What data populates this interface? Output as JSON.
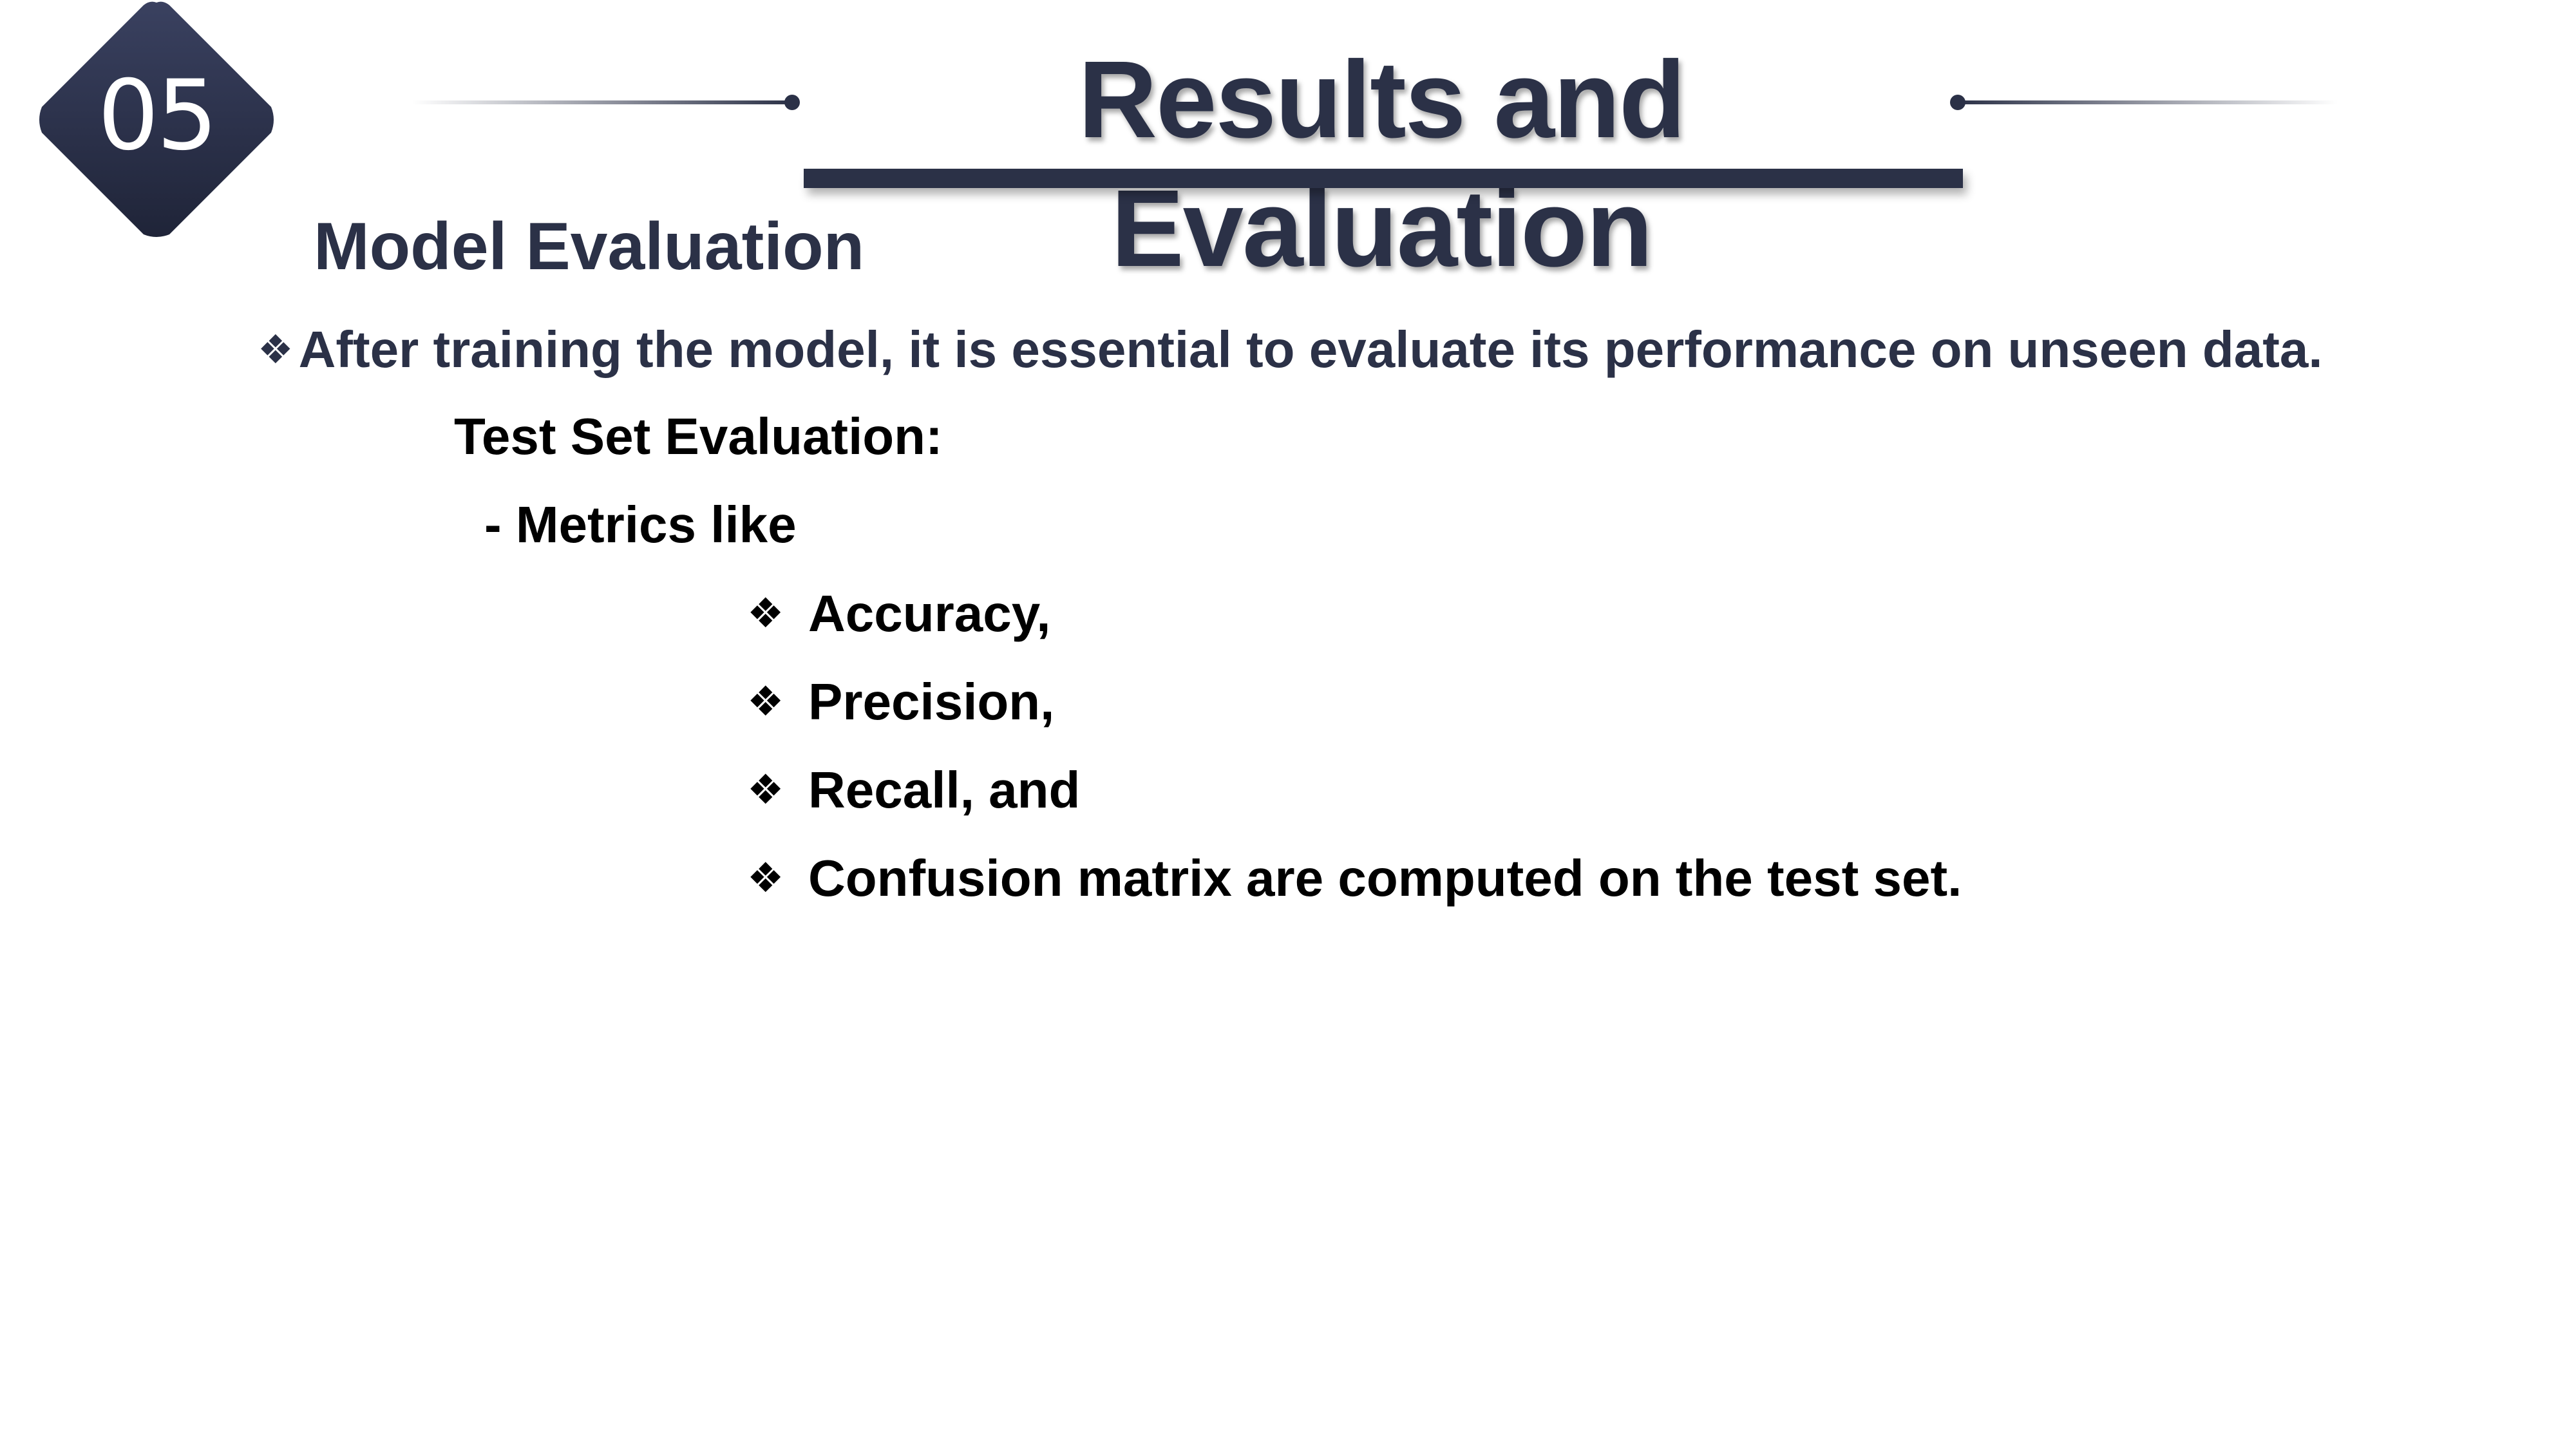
{
  "section": {
    "number": "05",
    "badge_color": "#2b3147"
  },
  "header": {
    "title": "Results and Evaluation",
    "accent_color": "#2b3147"
  },
  "content": {
    "heading": "Model Evaluation",
    "intro_bullet": "❖",
    "intro": "After training the model, it is essential to evaluate its performance on unseen data.",
    "subheading": "Test Set Evaluation:",
    "metrics_intro": "- Metrics like",
    "metric_bullet": "❖",
    "metrics": [
      "Accuracy,",
      "Precision,",
      "Recall, and",
      "Confusion matrix are computed on the test set."
    ]
  }
}
